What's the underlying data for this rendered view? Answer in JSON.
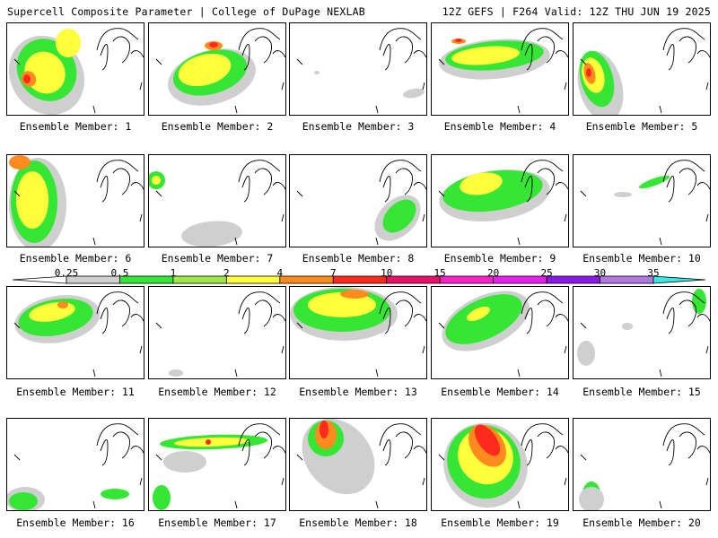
{
  "header": {
    "left_title": "Supercell Composite Parameter | College of DuPage NEXLAB",
    "right_title": "12Z GEFS | F264 Valid: 12Z THU JUN 19 2025"
  },
  "legend": {
    "ticks": [
      "0.25",
      "0.5",
      "1",
      "2",
      "4",
      "7",
      "10",
      "15",
      "20",
      "25",
      "30",
      "35"
    ],
    "colors": [
      "#cfcfcf",
      "#35e635",
      "#9ce84a",
      "#ffff3c",
      "#ff8a1e",
      "#ff2a1e",
      "#e8106a",
      "#ff22c8",
      "#e621f0",
      "#8a18e6",
      "#b07be0",
      "#3ee6e6"
    ]
  },
  "panels": [
    {
      "label": "Ensemble Member: 1"
    },
    {
      "label": "Ensemble Member: 2"
    },
    {
      "label": "Ensemble Member: 3"
    },
    {
      "label": "Ensemble Member: 4"
    },
    {
      "label": "Ensemble Member: 5"
    },
    {
      "label": "Ensemble Member: 6"
    },
    {
      "label": "Ensemble Member: 7"
    },
    {
      "label": "Ensemble Member: 8"
    },
    {
      "label": "Ensemble Member: 9"
    },
    {
      "label": "Ensemble Member: 10"
    },
    {
      "label": "Ensemble Member: 11"
    },
    {
      "label": "Ensemble Member: 12"
    },
    {
      "label": "Ensemble Member: 13"
    },
    {
      "label": "Ensemble Member: 14"
    },
    {
      "label": "Ensemble Member: 15"
    },
    {
      "label": "Ensemble Member: 16"
    },
    {
      "label": "Ensemble Member: 17"
    },
    {
      "label": "Ensemble Member: 18"
    },
    {
      "label": "Ensemble Member: 19"
    },
    {
      "label": "Ensemble Member: 20"
    }
  ]
}
